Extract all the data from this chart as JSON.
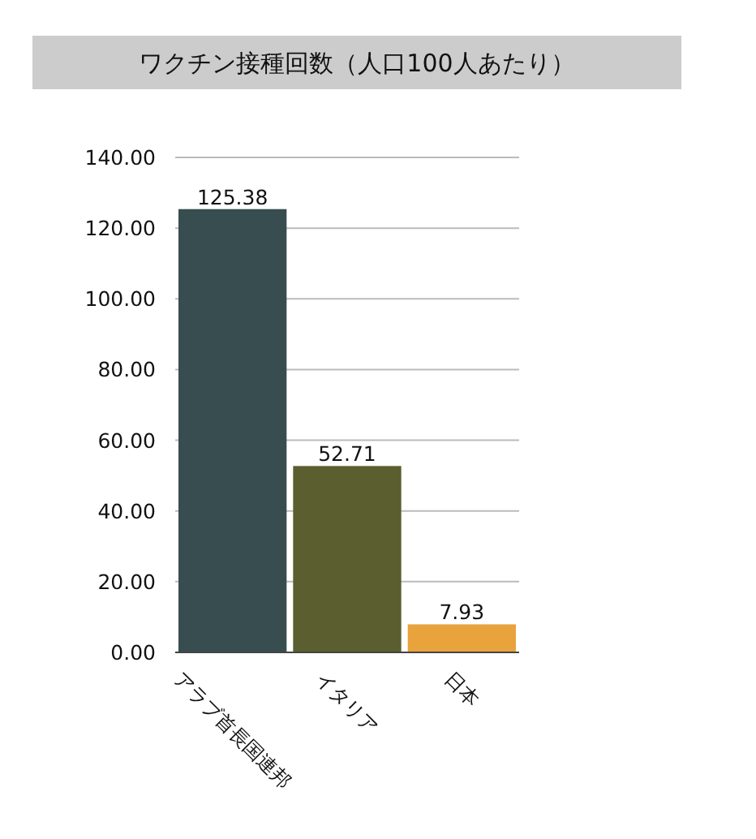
{
  "chart_data": {
    "type": "bar",
    "title": "ワクチン接種回数（人口100人あたり）",
    "categories": [
      "アラブ首長国連邦",
      "イタリア",
      "日本"
    ],
    "values": [
      125.38,
      52.71,
      7.93
    ],
    "colors": [
      "#384d4f",
      "#5b5e2e",
      "#e8a33c"
    ],
    "ylim": [
      0,
      140
    ],
    "yticks": [
      {
        "value": 0,
        "label": "0.00"
      },
      {
        "value": 20,
        "label": "20.00"
      },
      {
        "value": 40,
        "label": "40.00"
      },
      {
        "value": 60,
        "label": "60.00"
      },
      {
        "value": 80,
        "label": "80.00"
      },
      {
        "value": 100,
        "label": "100.00"
      },
      {
        "value": 120,
        "label": "120.00"
      },
      {
        "value": 140,
        "label": "140.00"
      }
    ],
    "grid": "y",
    "data_labels": true
  }
}
